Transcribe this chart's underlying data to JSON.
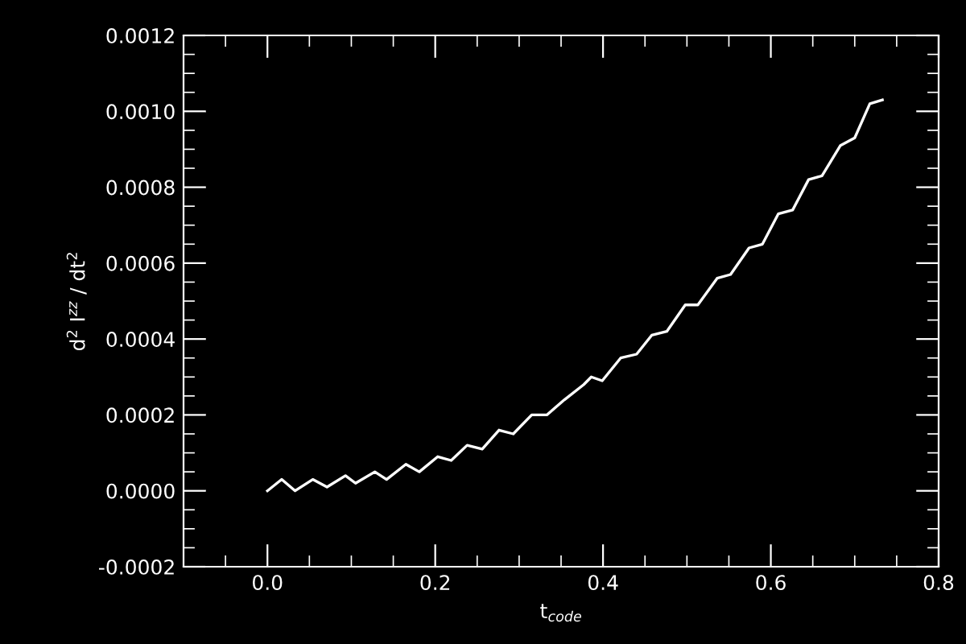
{
  "chart_data": {
    "type": "line",
    "xlabel": "t$_{code}$",
    "ylabel": "d$^{2}$ I$^{zz}$ / dt$^{2}$",
    "x": [
      0.0,
      0.017,
      0.033,
      0.054,
      0.071,
      0.093,
      0.105,
      0.128,
      0.142,
      0.165,
      0.181,
      0.203,
      0.219,
      0.238,
      0.256,
      0.276,
      0.293,
      0.315,
      0.333,
      0.354,
      0.377,
      0.386,
      0.399,
      0.421,
      0.44,
      0.458,
      0.476,
      0.498,
      0.513,
      0.536,
      0.552,
      0.574,
      0.59,
      0.609,
      0.626,
      0.645,
      0.661,
      0.683,
      0.7,
      0.718,
      0.733
    ],
    "series": [
      {
        "color": "#ffffff",
        "values": [
          0.0,
          3e-05,
          0.0,
          3e-05,
          1e-05,
          4e-05,
          2e-05,
          5e-05,
          3e-05,
          7e-05,
          5e-05,
          9e-05,
          8e-05,
          0.00012,
          0.00011,
          0.00016,
          0.00015,
          0.0002,
          0.0002,
          0.00024,
          0.00028,
          0.0003,
          0.00029,
          0.00035,
          0.00036,
          0.00041,
          0.00042,
          0.00049,
          0.00049,
          0.00056,
          0.00057,
          0.00064,
          0.00065,
          0.00073,
          0.00074,
          0.00082,
          0.00083,
          0.00091,
          0.00093,
          0.00102,
          0.00103
        ]
      }
    ],
    "xlim": [
      -0.1,
      0.8
    ],
    "xticks": [
      {
        "value": 0.0,
        "label": "0.0"
      },
      0.2,
      0.4,
      0.6,
      0.8
    ],
    "ylim": [
      -0.0002,
      0.0012
    ],
    "yticks": [
      {
        "value": -0.0002,
        "label": "-0.0002"
      },
      {
        "value": 0.0,
        "label": "0.0000"
      },
      0.0002,
      0.0004,
      0.0006,
      0.0008,
      {
        "value": 0.001,
        "label": "0.0010"
      },
      0.0012
    ],
    "grid": false,
    "marker": "none",
    "line_style": "solid"
  }
}
